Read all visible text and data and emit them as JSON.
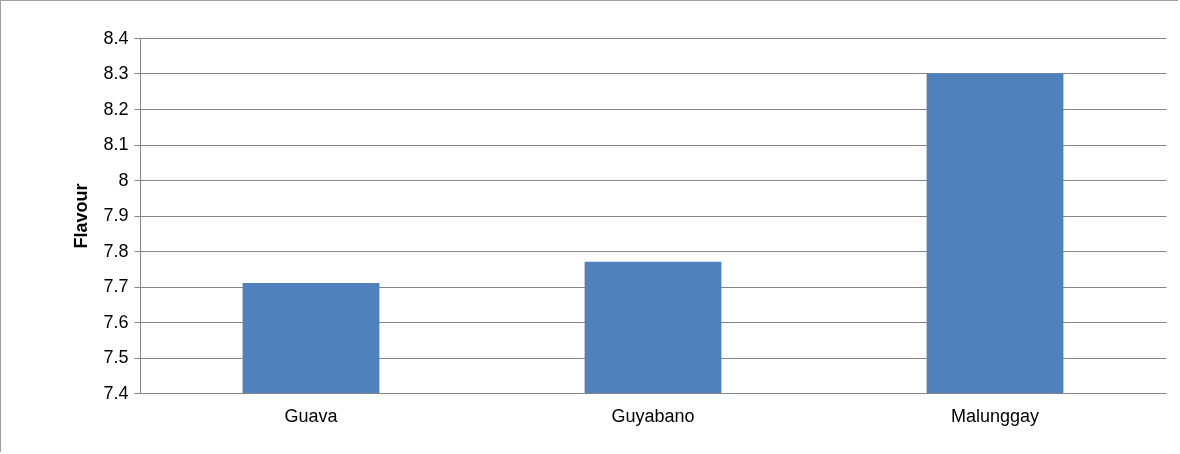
{
  "chart_data": {
    "type": "bar",
    "ylabel": "Flavour",
    "categories": [
      "Guava",
      "Guyabano",
      "Malunggay"
    ],
    "values": [
      7.71,
      7.77,
      8.3
    ],
    "color": "#4f81bd",
    "ylim": [
      7.4,
      8.4
    ],
    "yticks": [
      7.4,
      7.5,
      7.6,
      7.7,
      7.8,
      7.9,
      8,
      8.1,
      8.2,
      8.3,
      8.4
    ],
    "grid": "y"
  }
}
